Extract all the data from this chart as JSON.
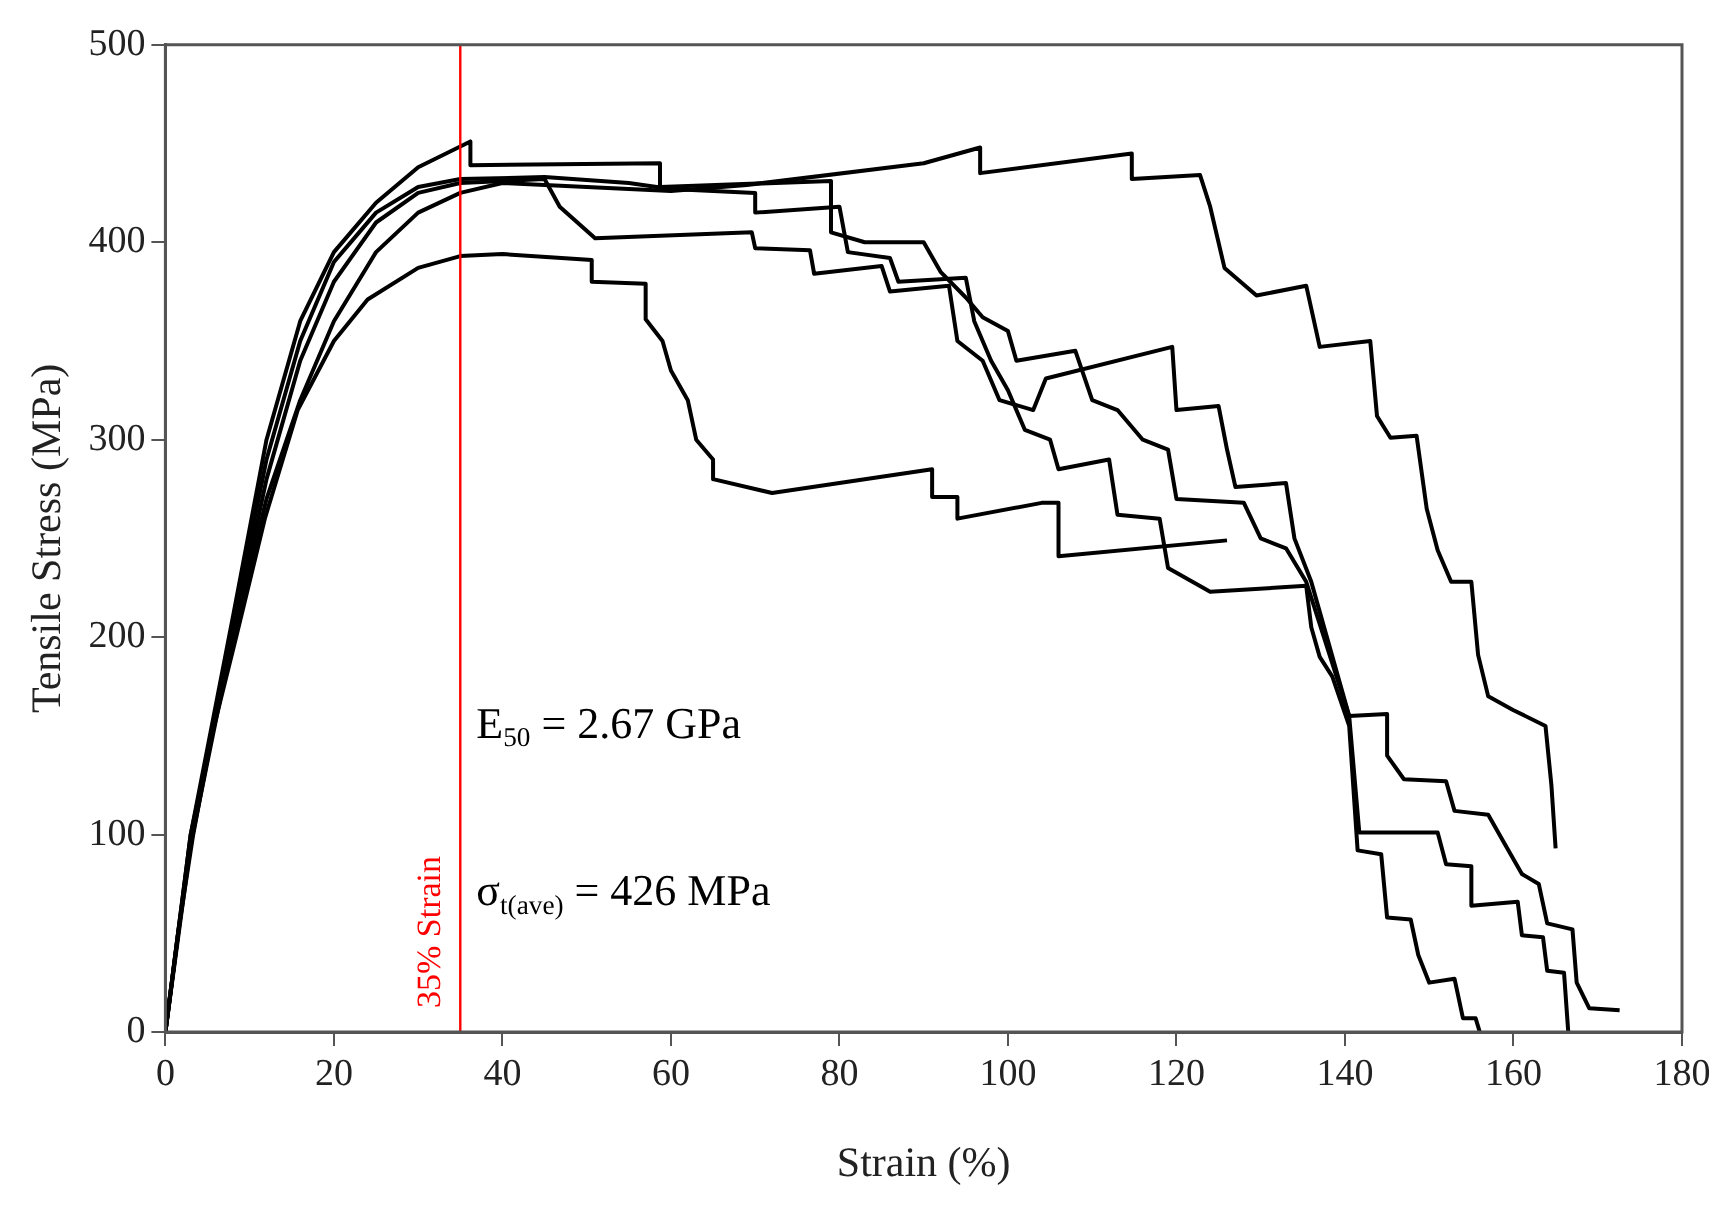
{
  "chart_data": {
    "type": "line",
    "xlabel": "Strain (%)",
    "ylabel": "Tensile Stress (MPa)",
    "xlim": [
      0,
      180
    ],
    "xticks": [
      0,
      20,
      40,
      60,
      80,
      100,
      120,
      140,
      160,
      180
    ],
    "ylim": [
      0,
      500
    ],
    "yticks": [
      0,
      100,
      200,
      300,
      400,
      500
    ],
    "grid": false,
    "legend": false,
    "marker": "none",
    "line_style": "solid",
    "series": [
      {
        "color": "#000000",
        "x": [
          0,
          1.5,
          3.3,
          5.5,
          8.4,
          11.8,
          15.7,
          20,
          24,
          30,
          35,
          40,
          50.6,
          50.6,
          57,
          57,
          59,
          60,
          62,
          63,
          65,
          65,
          72,
          91,
          91,
          94,
          94,
          104,
          106,
          106,
          126
        ],
        "values": [
          0,
          50,
          100,
          150,
          200,
          260,
          315,
          350,
          371,
          387,
          393,
          394,
          391,
          380,
          379,
          361,
          350,
          335,
          320,
          300,
          290,
          280,
          273,
          285,
          271,
          271,
          260,
          268,
          268,
          241,
          249
        ]
      },
      {
        "color": "#000000",
        "x": [
          0,
          3,
          8,
          12,
          16,
          20,
          25,
          30,
          36.2,
          36.2,
          58.7,
          58.7,
          79,
          79,
          83,
          90,
          92,
          95,
          97,
          100,
          101,
          108,
          110,
          113,
          116,
          119,
          120,
          128,
          130,
          133,
          135.4,
          140.5,
          141.7,
          151,
          152,
          155,
          155,
          160.5,
          161,
          163.5,
          164,
          166,
          166.5
        ],
        "values": [
          0,
          100,
          210,
          300,
          360,
          395,
          420,
          438,
          451,
          439,
          440,
          428,
          431,
          405,
          400,
          400,
          385,
          372,
          362,
          355,
          340,
          345,
          320,
          315,
          300,
          295,
          270,
          268,
          250,
          245,
          228,
          160,
          101,
          101,
          85,
          84,
          64,
          66,
          49,
          48,
          31,
          30,
          0
        ]
      },
      {
        "color": "#000000",
        "x": [
          0,
          3,
          8,
          12,
          16,
          20,
          25,
          30,
          35,
          40,
          50,
          60,
          69,
          90,
          96.7,
          96.7,
          114.7,
          114.7,
          122.8,
          124,
          125.7,
          129.5,
          135.4,
          137,
          143,
          143.8,
          145.4,
          148.5,
          149.7,
          151,
          152.6,
          155,
          155.8,
          157,
          160,
          163.8,
          164.5,
          165
        ],
        "values": [
          0,
          100,
          200,
          270,
          320,
          360,
          395,
          415,
          425,
          430,
          428,
          426,
          429,
          440,
          448,
          435,
          445,
          432,
          434,
          418,
          387,
          373,
          378,
          347,
          350,
          312,
          301,
          302,
          265,
          244,
          228,
          228,
          191,
          170,
          163,
          155,
          125,
          93
        ]
      },
      {
        "color": "#000000",
        "x": [
          0,
          3,
          8,
          12,
          16,
          20,
          25,
          30,
          35,
          45,
          46.8,
          51,
          69.6,
          70,
          76.5,
          77,
          85,
          86,
          93,
          94,
          97,
          99,
          103,
          104.5,
          119.5,
          120,
          125,
          126,
          127,
          133,
          134,
          136,
          140.5,
          145,
          145,
          147,
          152,
          153,
          157,
          159,
          161,
          163,
          164,
          167,
          167.5,
          169,
          172.6
        ],
        "values": [
          0,
          95,
          200,
          280,
          340,
          380,
          410,
          425,
          430,
          432,
          418,
          402,
          405,
          397,
          396,
          384,
          388,
          375,
          378,
          350,
          340,
          320,
          315,
          331,
          347,
          315,
          317,
          295,
          276,
          278,
          250,
          228,
          160,
          161,
          140,
          128,
          127,
          112,
          110,
          95,
          80,
          75,
          55,
          52,
          25,
          12,
          11
        ]
      },
      {
        "color": "#000000",
        "x": [
          0,
          3,
          8,
          12,
          16,
          20,
          25,
          30,
          35,
          45,
          55,
          60,
          70,
          70,
          80,
          81,
          86,
          87,
          95,
          96,
          98,
          100,
          102,
          105,
          106,
          112,
          113,
          118,
          119,
          124,
          135.4,
          136,
          137,
          138.5,
          140.5,
          141.5,
          144.3,
          145,
          147.8,
          148.7,
          150,
          153,
          154,
          155.5,
          156
        ],
        "values": [
          0,
          98,
          205,
          290,
          350,
          390,
          415,
          428,
          432,
          433,
          430,
          427,
          425,
          415,
          418,
          395,
          392,
          380,
          382,
          360,
          340,
          325,
          305,
          300,
          285,
          290,
          262,
          260,
          235,
          223,
          226,
          205,
          190,
          180,
          155,
          92,
          90,
          58,
          57,
          39,
          25,
          27,
          7,
          7,
          0
        ]
      }
    ],
    "ref_lines": [
      {
        "axis": "x",
        "value": 35,
        "label": "35% Strain",
        "color": "#ff0000",
        "line_style": "solid"
      }
    ],
    "annotations": [
      "E$_{50}$ = 2.67 GPa",
      "σ$_{t(ave)}$ = 426 MPa"
    ]
  }
}
